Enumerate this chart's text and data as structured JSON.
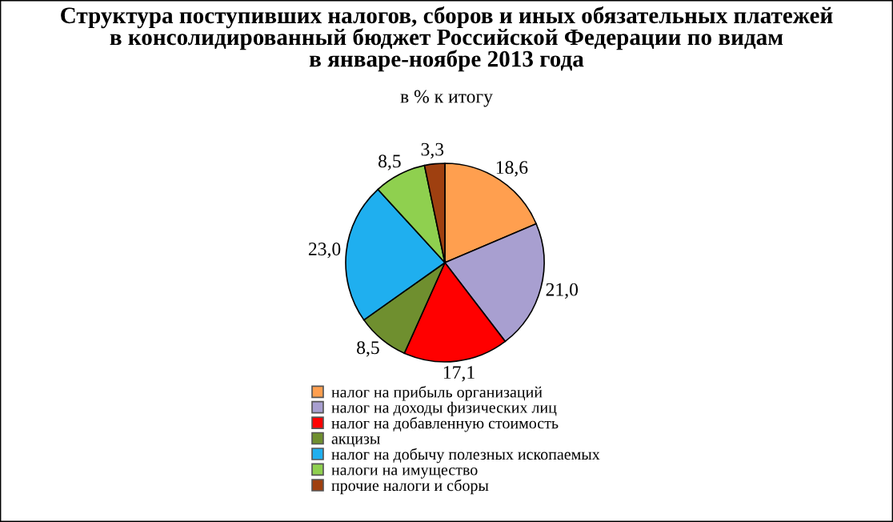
{
  "chart_data": {
    "type": "pie",
    "title": "Структура поступивших налогов, сборов и иных обязательных платежей\nв консолидированный бюджет Российской Федерации по видам\nв январе-ноябре 2013 года",
    "subtitle": "в % к итогу",
    "categories": [
      "налог на прибыль организаций",
      "налог на доходы физических лиц",
      "налог на добавленную стоимость",
      "акцизы",
      "налог на добычу полезных ископаемых",
      "налоги на имущество",
      "прочие налоги и сборы"
    ],
    "values": [
      18.6,
      21.0,
      17.1,
      8.5,
      23.0,
      8.5,
      3.3
    ],
    "value_labels": [
      "18,6",
      "21,0",
      "17,1",
      "8,5",
      "23,0",
      "8,5",
      "3,3"
    ],
    "colors": [
      "#ff9f4f",
      "#a89fd0",
      "#ff0000",
      "#6f8f2f",
      "#1fafef",
      "#8fd04f",
      "#9f4010"
    ],
    "legend": "bottom"
  }
}
